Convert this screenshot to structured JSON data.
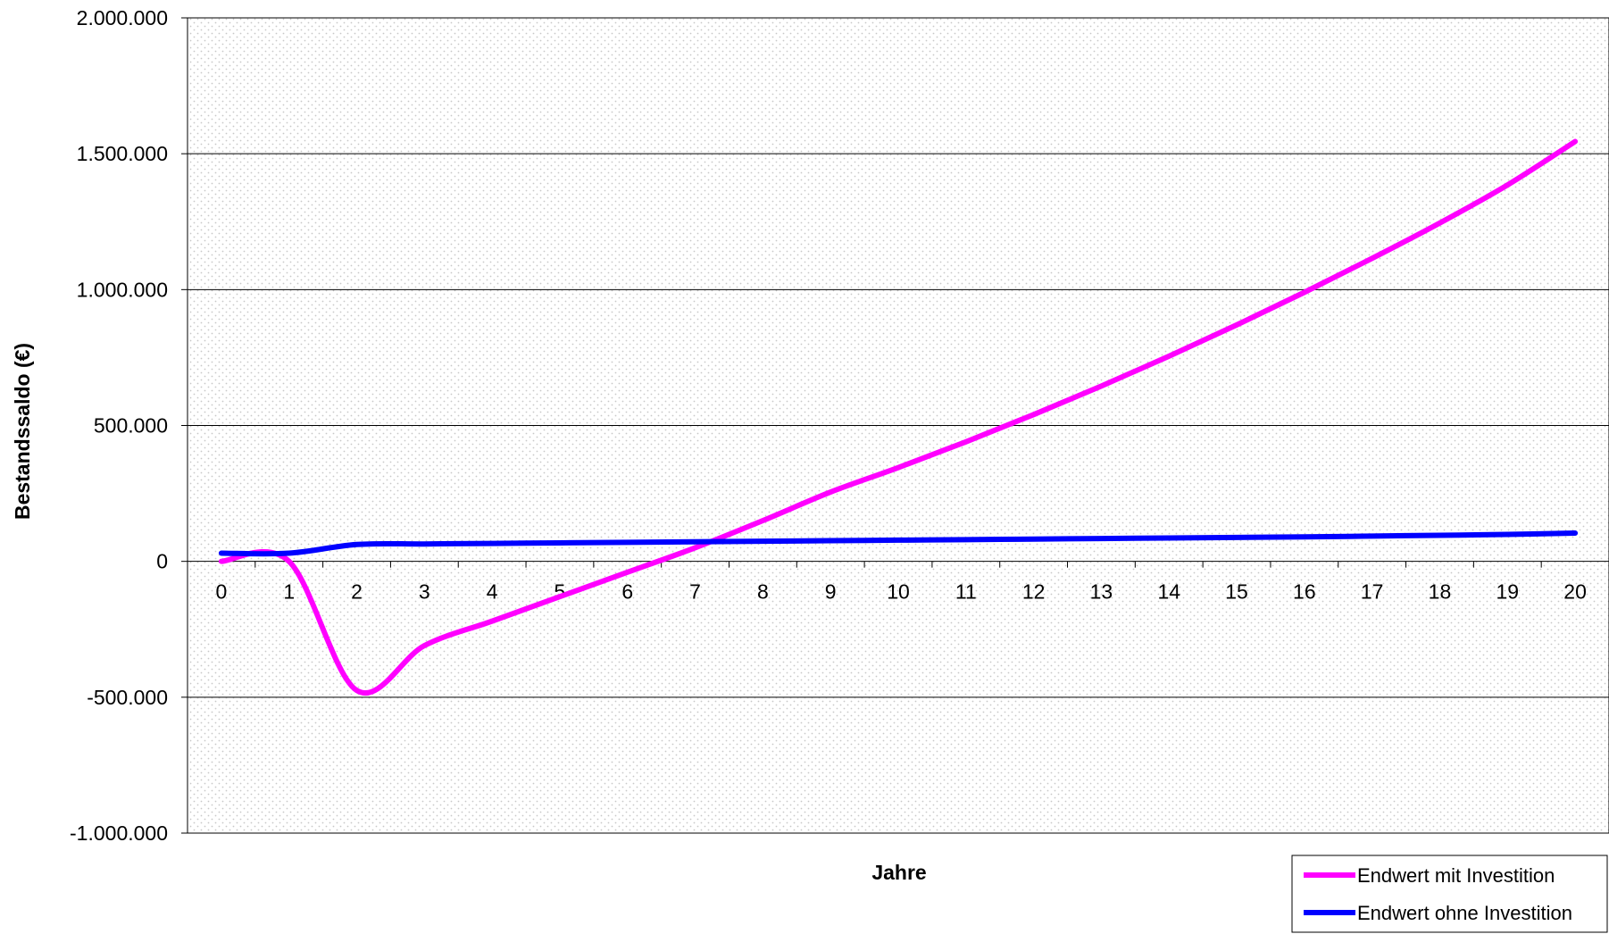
{
  "chart_data": {
    "type": "line",
    "title": "",
    "xlabel": "Jahre",
    "ylabel": "Bestandssaldo (€)",
    "x": [
      0,
      1,
      2,
      3,
      4,
      5,
      6,
      7,
      8,
      9,
      10,
      11,
      12,
      13,
      14,
      15,
      16,
      17,
      18,
      19,
      20
    ],
    "ylim": [
      -1000000,
      2000000
    ],
    "yticks": [
      -1000000,
      -500000,
      0,
      500000,
      1000000,
      1500000,
      2000000
    ],
    "ytick_labels": [
      "-1.000.000",
      "-500.000",
      "0",
      "500.000",
      "1.000.000",
      "1.500.000",
      "2.000.000"
    ],
    "xtick_labels": [
      "0",
      "1",
      "2",
      "3",
      "4",
      "5",
      "6",
      "7",
      "8",
      "9",
      "10",
      "11",
      "12",
      "13",
      "14",
      "15",
      "16",
      "17",
      "18",
      "19",
      "20"
    ],
    "grid": "horizontal",
    "legend_position": "bottom-right",
    "series": [
      {
        "name": "Endwert mit Investition",
        "color": "#ff00ff",
        "values": [
          0,
          0,
          -475000,
          -310000,
          -220000,
          -130000,
          -40000,
          50000,
          150000,
          255000,
          345000,
          440000,
          540000,
          645000,
          755000,
          870000,
          990000,
          1115000,
          1245000,
          1385000,
          1545000
        ]
      },
      {
        "name": "Endwert ohne Investition",
        "color": "#0000ff",
        "values": [
          30000,
          30000,
          62000,
          64000,
          66000,
          68000,
          70000,
          72000,
          74000,
          76000,
          78000,
          80000,
          82000,
          84000,
          86000,
          88000,
          90000,
          93000,
          96000,
          99000,
          104000
        ]
      }
    ]
  }
}
